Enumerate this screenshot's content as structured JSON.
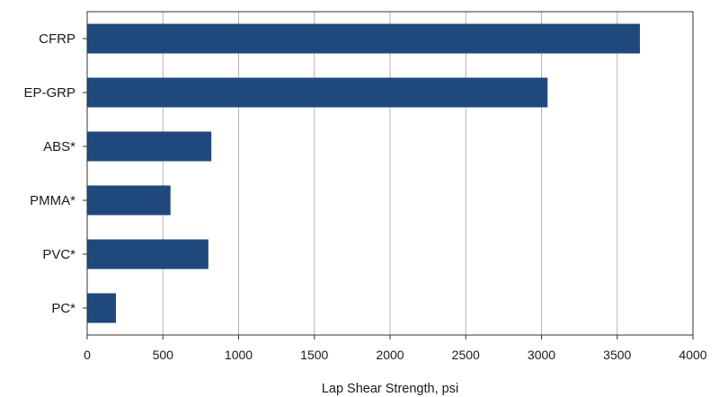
{
  "chart_data": {
    "type": "bar",
    "orientation": "horizontal",
    "categories": [
      "CFRP",
      "EP-GRP",
      "ABS*",
      "PMMA*",
      "PVC*",
      "PC*"
    ],
    "values": [
      3650,
      3040,
      820,
      550,
      800,
      190
    ],
    "title": "",
    "xlabel": "Lap Shear Strength, psi",
    "ylabel": "",
    "xlim": [
      0,
      4000
    ],
    "xticks": [
      "0",
      "500",
      "1000",
      "1500",
      "2000",
      "2500",
      "3000",
      "3500",
      "4000"
    ],
    "grid": "vertical",
    "legend": "none",
    "colors": {
      "bar": "#1f497d",
      "grid": "#b3b3b3",
      "frame": "#333333"
    }
  }
}
